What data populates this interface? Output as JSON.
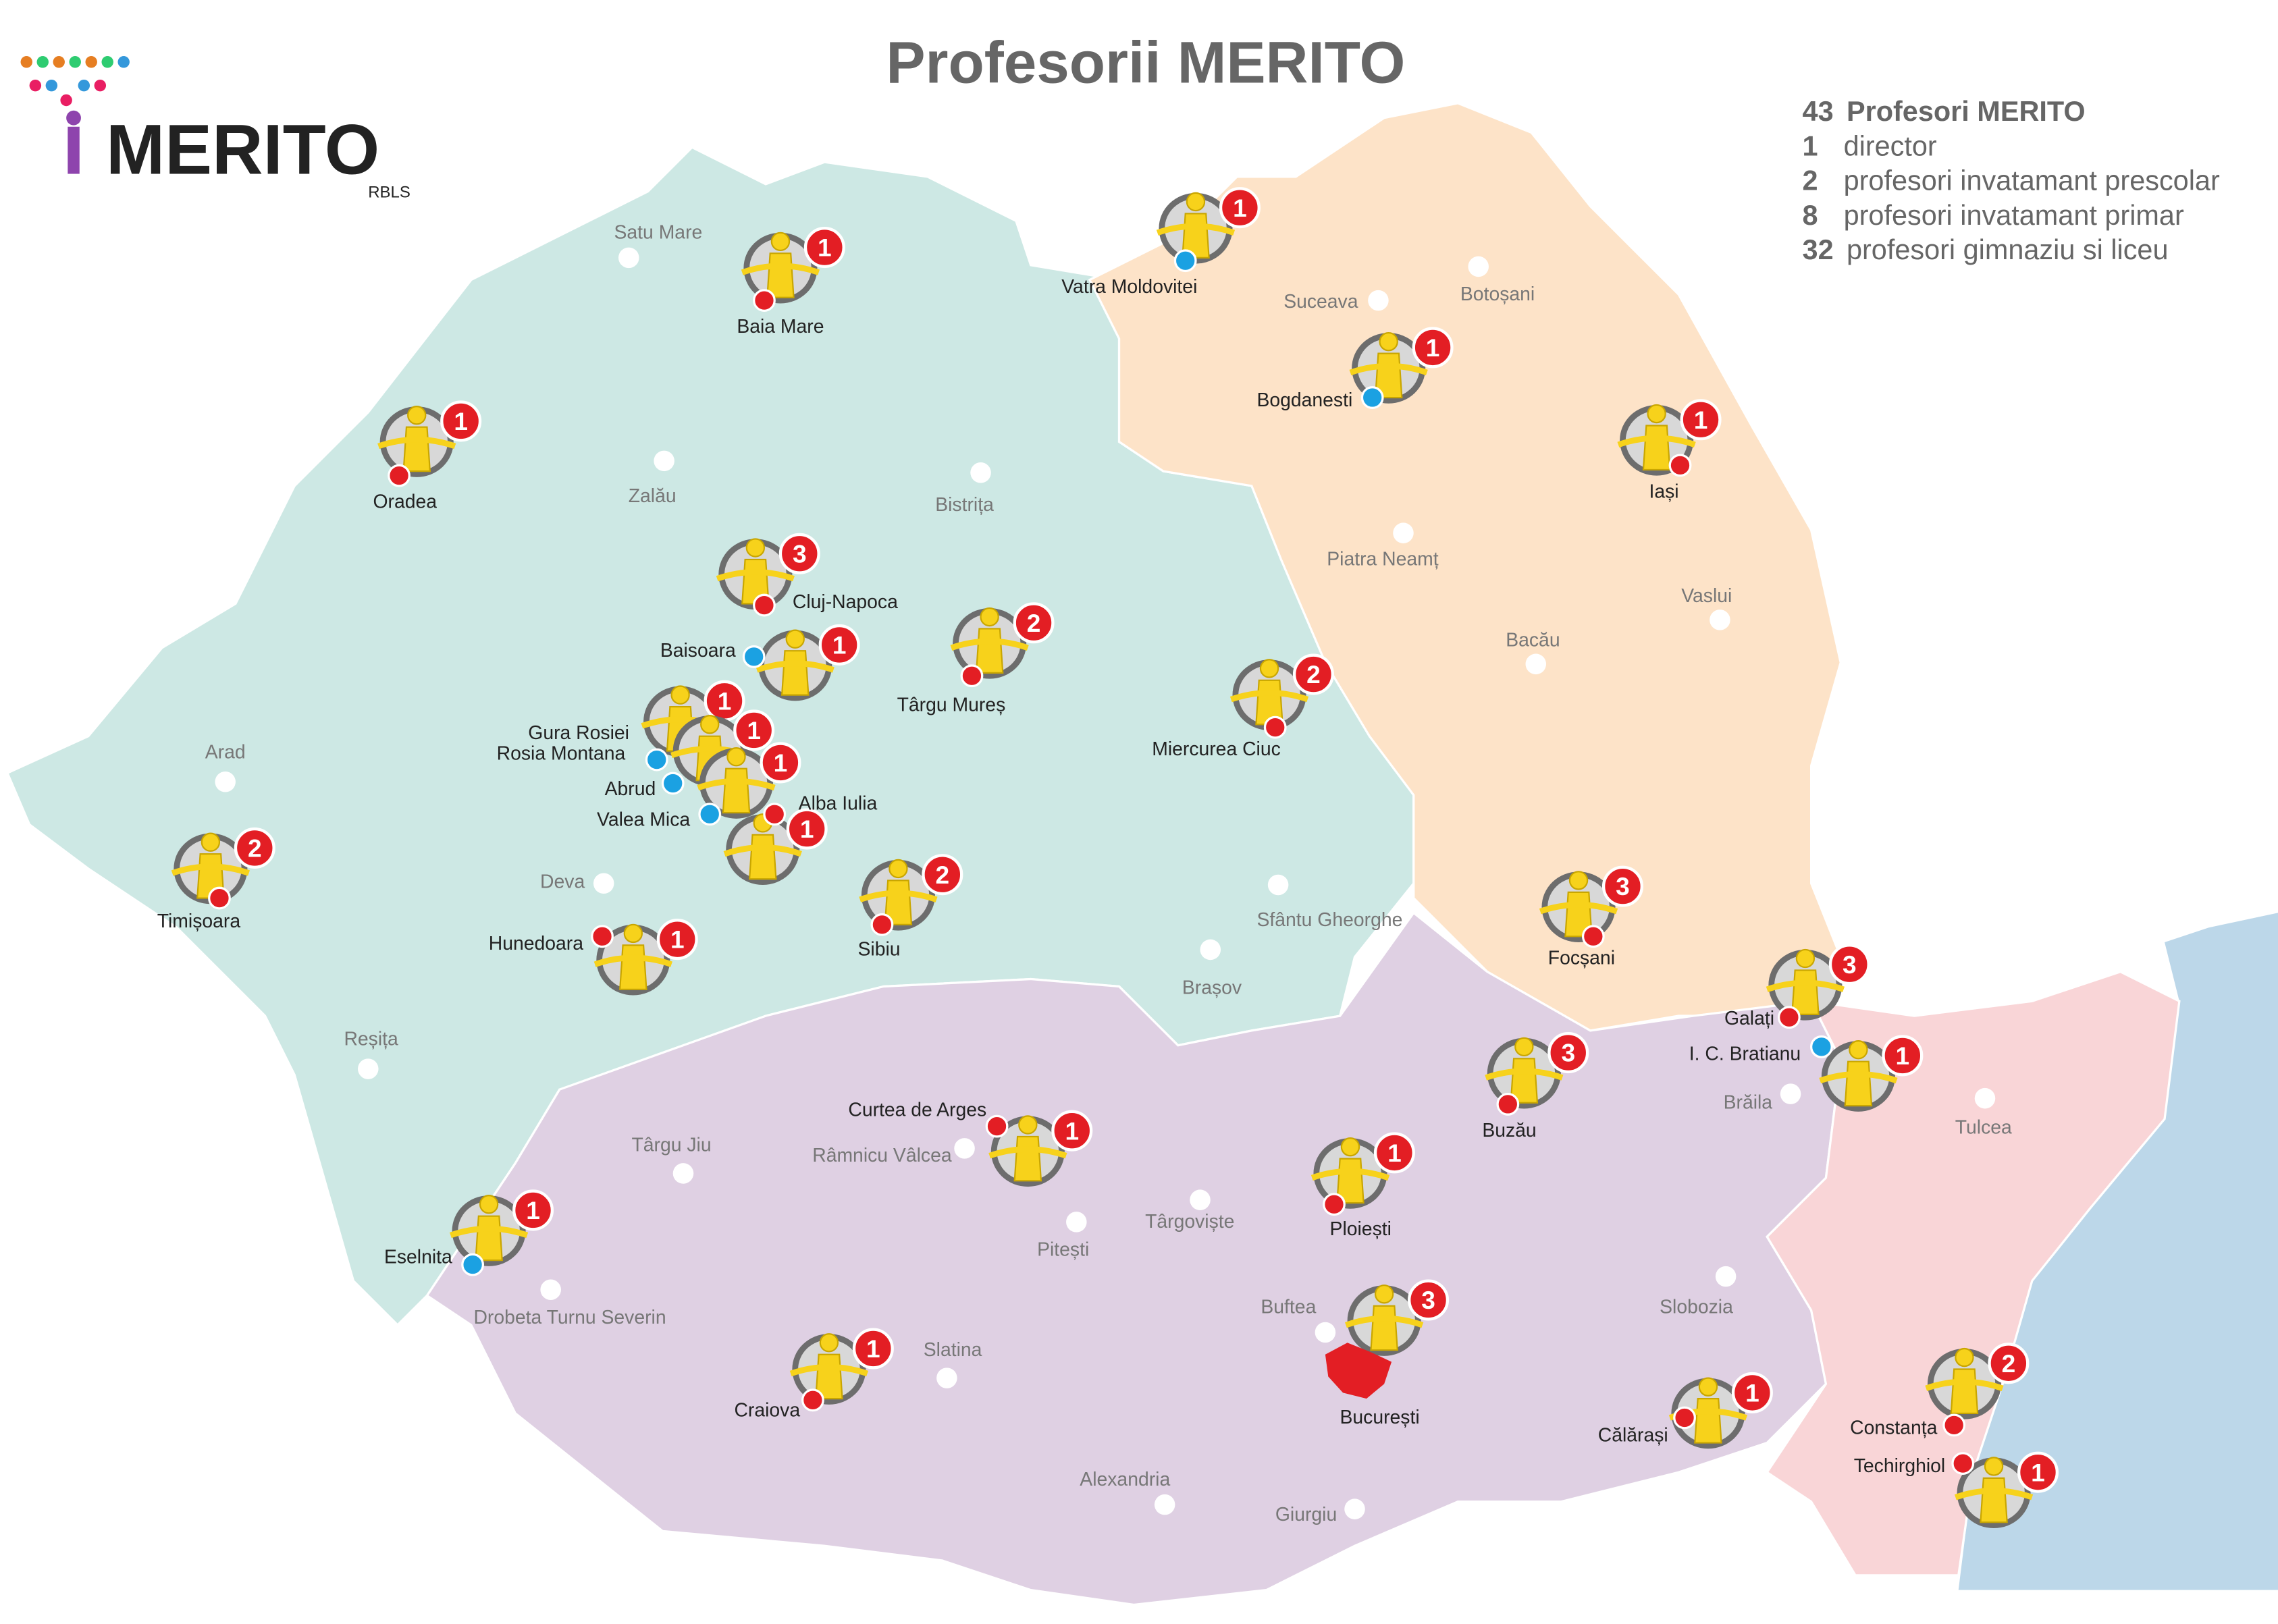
{
  "title": "Profesorii MERITO",
  "logo": {
    "name": "MERITO",
    "sub": "RBLS"
  },
  "legend": [
    {
      "count": 43,
      "text": "Profesori MERITO"
    },
    {
      "count": 1,
      "text": "director"
    },
    {
      "count": 2,
      "text": "profesori invatamant prescolar"
    },
    {
      "count": 8,
      "text": "profesori invatamant primar"
    },
    {
      "count": 32,
      "text": "profesori gimnaziu si liceu"
    }
  ],
  "markers": [
    {
      "label": "Baia Mare",
      "count": 1,
      "dot": "#e31e24"
    },
    {
      "label": "Vatra Moldovitei",
      "count": 1,
      "dot": "#1ba1e2"
    },
    {
      "label": "Bogdanesti",
      "count": 1,
      "dot": "#1ba1e2"
    },
    {
      "label": "Iași",
      "count": 1,
      "dot": "#e31e24"
    },
    {
      "label": "Oradea",
      "count": 1,
      "dot": "#e31e24"
    },
    {
      "label": "Cluj-Napoca",
      "count": 3,
      "dot": "#e31e24"
    },
    {
      "label": "Baisoara",
      "count": 1,
      "dot": "#1ba1e2"
    },
    {
      "label": "Târgu Mureș",
      "count": 2,
      "dot": "#e31e24"
    },
    {
      "label": "Miercurea Ciuc",
      "count": 2,
      "dot": "#e31e24"
    },
    {
      "label": "Gura Rosiei",
      "count": 1,
      "dot": "#1ba1e2"
    },
    {
      "label": "Rosia Montana",
      "count": 1
    },
    {
      "label": "Abrud",
      "count": 1,
      "dot": "#1ba1e2"
    },
    {
      "label": "Valea Mica",
      "count": 1,
      "dot": "#1ba1e2"
    },
    {
      "label": "Alba Iulia",
      "dot": "#e31e24"
    },
    {
      "label": "Timișoara",
      "count": 2,
      "dot": "#e31e24"
    },
    {
      "label": "Sibiu",
      "count": 2,
      "dot": "#e31e24"
    },
    {
      "label": "Hunedoara",
      "count": 1,
      "dot": "#e31e24"
    },
    {
      "label": "Focșani",
      "count": 3,
      "dot": "#e31e24"
    },
    {
      "label": "Galați",
      "count": 3,
      "dot": "#e31e24"
    },
    {
      "label": "I. C. Bratianu",
      "count": 1,
      "dot": "#1ba1e2"
    },
    {
      "label": "Buzău",
      "count": 3,
      "dot": "#e31e24"
    },
    {
      "label": "Curtea de Arges",
      "count": 1,
      "dot": "#e31e24"
    },
    {
      "label": "Ploiești",
      "count": 1,
      "dot": "#e31e24"
    },
    {
      "label": "Eselnita",
      "count": 1,
      "dot": "#1ba1e2"
    },
    {
      "label": "București",
      "count": 3
    },
    {
      "label": "Craiova",
      "count": 1,
      "dot": "#e31e24"
    },
    {
      "label": "Călărași",
      "count": 1,
      "dot": "#e31e24"
    },
    {
      "label": "Constanța",
      "count": 2,
      "dot": "#e31e24"
    },
    {
      "label": "Techirghiol",
      "count": 1,
      "dot": "#e31e24"
    }
  ],
  "cities": [
    "Satu Mare",
    "Suceava",
    "Botoșani",
    "Zalău",
    "Bistrița",
    "Piatra Neamț",
    "Vaslui",
    "Bacău",
    "Arad",
    "Deva",
    "Sfântu Gheorghe",
    "Brașov",
    "Reșița",
    "Brăila",
    "Tulcea",
    "Târgu Jiu",
    "Râmnicu Vâlcea",
    "Târgoviște",
    "Pitești",
    "Drobeta Turnu Severin",
    "Slobozia",
    "Buftea",
    "Slatina",
    "Alexandria",
    "Giurgiu"
  ]
}
